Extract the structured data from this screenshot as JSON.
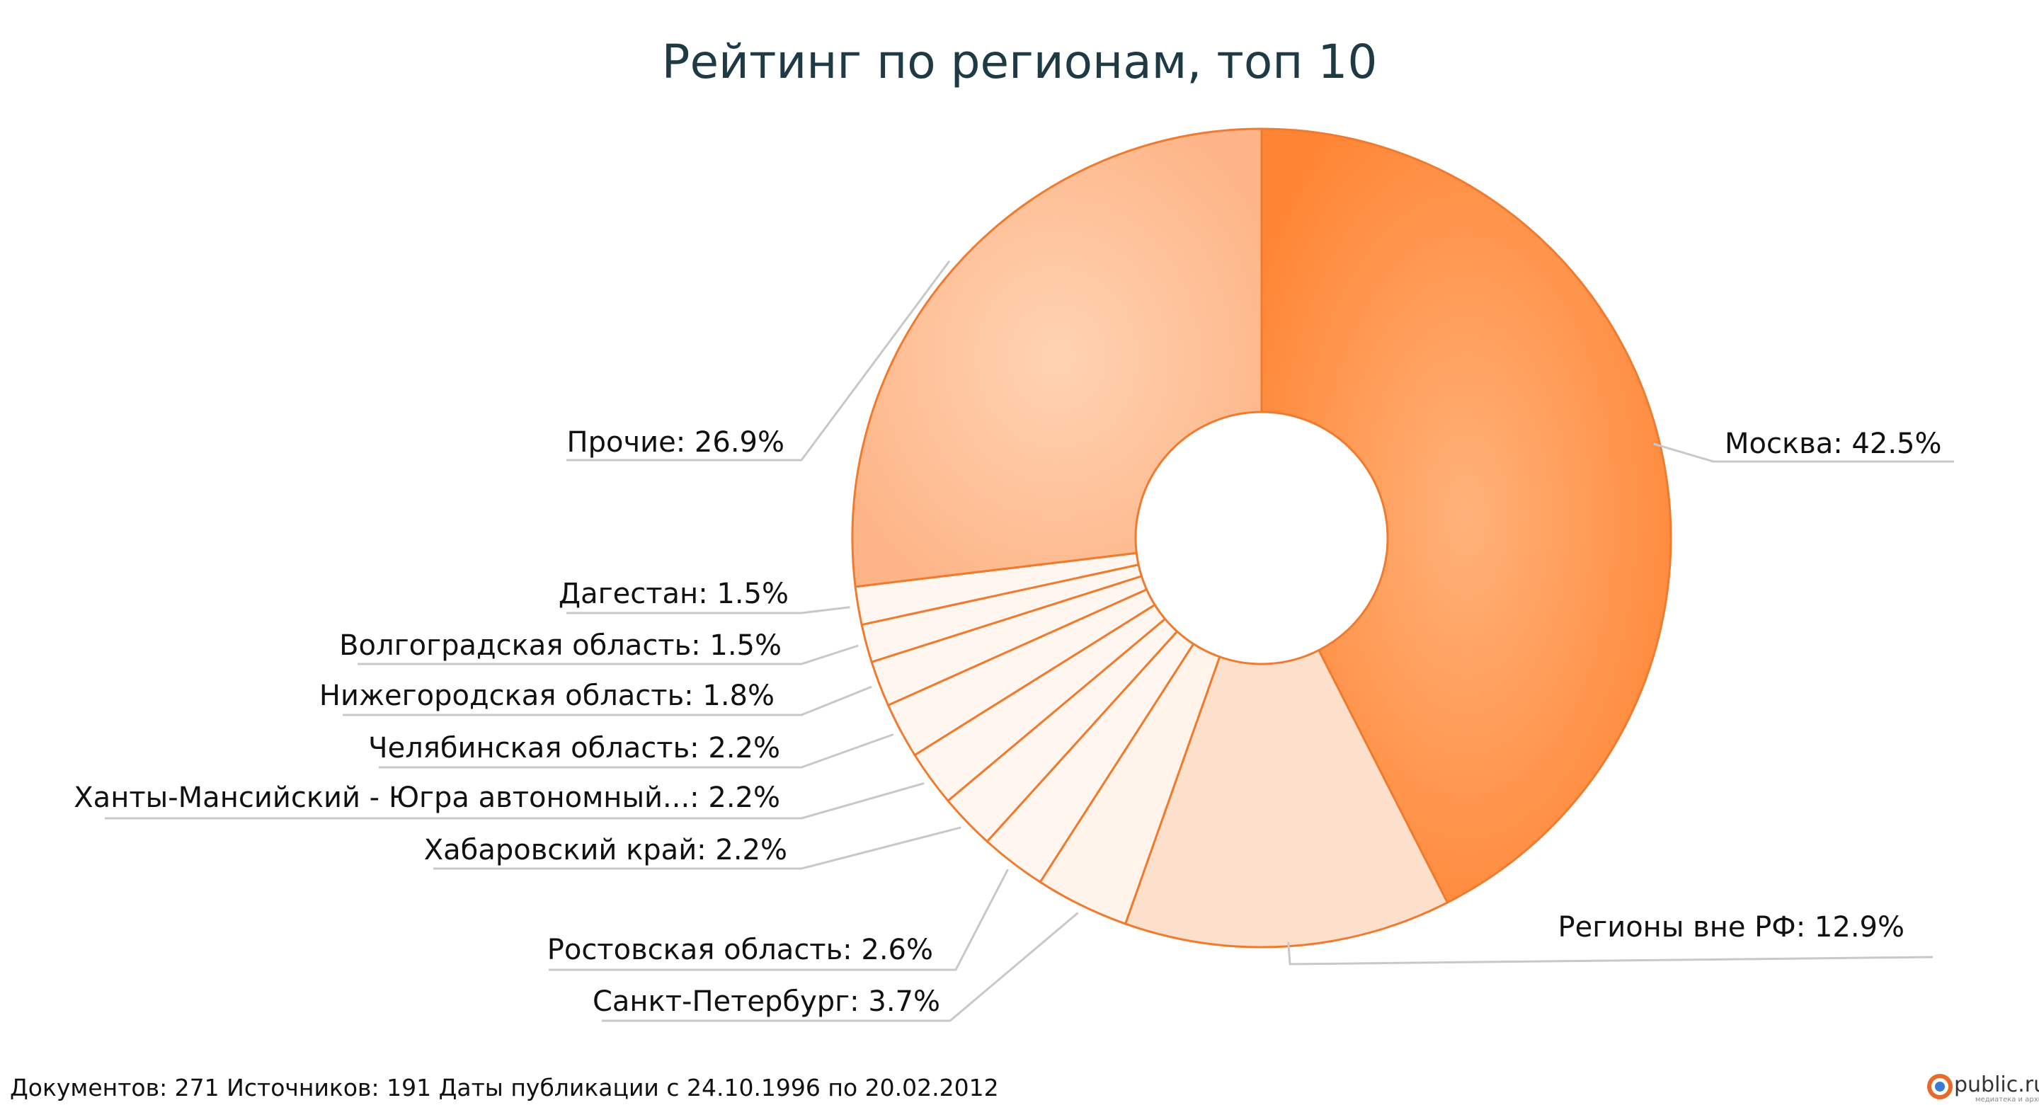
{
  "chart_data": {
    "type": "pie",
    "donut": true,
    "title": "Рейтинг по регионам, топ 10",
    "slices": [
      {
        "name": "Москва",
        "value": 42.5,
        "label": "Москва: 42.5%",
        "color": "#ff8c42"
      },
      {
        "name": "Регионы вне РФ",
        "value": 12.9,
        "label": "Регионы вне РФ: 12.9%",
        "color": "#fde0cb"
      },
      {
        "name": "Санкт-Петербург",
        "value": 3.7,
        "label": "Санкт-Петербург: 3.7%",
        "color": "#fff3ea"
      },
      {
        "name": "Ростовская область",
        "value": 2.6,
        "label": "Ростовская область: 2.6%",
        "color": "#fff6f0"
      },
      {
        "name": "Хабаровский край",
        "value": 2.2,
        "label": "Хабаровский край: 2.2%",
        "color": "#fff6f0"
      },
      {
        "name": "Ханты-Мансийский - Югра автономный...",
        "value": 2.2,
        "label": "Ханты-Мансийский - Югра автономный...: 2.2%",
        "color": "#fff6f0"
      },
      {
        "name": "Челябинская область",
        "value": 2.2,
        "label": "Челябинская область: 2.2%",
        "color": "#fff6f0"
      },
      {
        "name": "Нижегородская область",
        "value": 1.8,
        "label": "Нижегородская область: 1.8%",
        "color": "#fff6f0"
      },
      {
        "name": "Волгоградская область",
        "value": 1.5,
        "label": "Волгоградская область: 1.5%",
        "color": "#fff6f0"
      },
      {
        "name": "Дагестан",
        "value": 1.5,
        "label": "Дагестан: 1.5%",
        "color": "#fff6f0"
      },
      {
        "name": "Прочие",
        "value": 26.9,
        "label": "Прочие: 26.9%",
        "color": "#fdbb8e"
      }
    ],
    "stroke_color": "#f07a2e",
    "leader_color": "#c8c8c8"
  },
  "footer": {
    "text": "Документов: 271  Источников: 191  Даты публикации с 24.10.1996 по 20.02.2012"
  },
  "logo": {
    "text": "public.ru",
    "tagline": "медиатека и архив"
  }
}
